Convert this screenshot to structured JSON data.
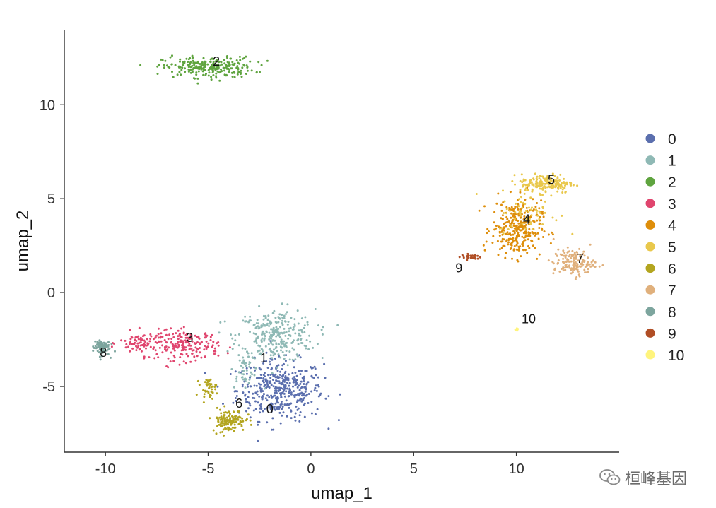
{
  "chart_data": {
    "type": "scatter",
    "title": "",
    "xlabel": "umap_1",
    "ylabel": "umap_2",
    "xlim": [
      -12,
      15
    ],
    "ylim": [
      -8.5,
      14
    ],
    "xticks": [
      -10,
      -5,
      0,
      5,
      10
    ],
    "yticks": [
      -5,
      0,
      5,
      10
    ],
    "grid": false,
    "legend_position": "right",
    "clusters": [
      {
        "name": "0",
        "color": "#5B6FAE",
        "label": [
          -2,
          -6.2
        ],
        "blobs": [
          [
            -1.5,
            -5.2,
            2.1,
            1.6,
            420
          ]
        ]
      },
      {
        "name": "1",
        "color": "#8FB9B5",
        "label": [
          -2.3,
          -3.5
        ],
        "blobs": [
          [
            -1.7,
            -2.3,
            1.9,
            1.4,
            300
          ],
          [
            -3.3,
            -4.2,
            0.6,
            0.9,
            40
          ]
        ]
      },
      {
        "name": "2",
        "color": "#5FA43F",
        "label": [
          -4.6,
          12.3
        ],
        "blobs": [
          [
            -5,
            12,
            2.2,
            0.55,
            260
          ]
        ]
      },
      {
        "name": "3",
        "color": "#E0456E",
        "label": [
          -5.9,
          -2.4
        ],
        "blobs": [
          [
            -6,
            -2.8,
            1.5,
            0.8,
            180
          ],
          [
            -8.1,
            -2.7,
            1.2,
            0.6,
            90
          ]
        ]
      },
      {
        "name": "4",
        "color": "#DE8E0B",
        "label": [
          10.5,
          3.9
        ],
        "blobs": [
          [
            10,
            3.4,
            1.2,
            1.5,
            300
          ]
        ]
      },
      {
        "name": "5",
        "color": "#E9C84C",
        "label": [
          11.7,
          6
        ],
        "blobs": [
          [
            11.5,
            5.8,
            1.3,
            0.5,
            180
          ],
          [
            10.6,
            4.2,
            1.5,
            1,
            60
          ]
        ]
      },
      {
        "name": "6",
        "color": "#B3A51F",
        "label": [
          -3.5,
          -5.9
        ],
        "blobs": [
          [
            -4,
            -6.8,
            0.8,
            0.6,
            130
          ],
          [
            -5,
            -5.1,
            0.4,
            0.5,
            40
          ]
        ]
      },
      {
        "name": "7",
        "color": "#E0B07C",
        "label": [
          13.1,
          1.8
        ],
        "blobs": [
          [
            12.8,
            1.6,
            1,
            0.7,
            150
          ]
        ]
      },
      {
        "name": "8",
        "color": "#7DA59E",
        "label": [
          -10.1,
          -3.2
        ],
        "blobs": [
          [
            -10.2,
            -2.9,
            0.4,
            0.45,
            90
          ]
        ]
      },
      {
        "name": "9",
        "color": "#B04E25",
        "label": [
          7.2,
          1.3
        ],
        "blobs": [
          [
            7.8,
            1.9,
            0.5,
            0.15,
            30
          ]
        ]
      },
      {
        "name": "10",
        "color": "#FFF47D",
        "label": [
          10.6,
          -1.4
        ],
        "blobs": [
          [
            10,
            -2,
            0.1,
            0.1,
            6
          ]
        ]
      }
    ]
  },
  "watermark": {
    "text": "桓峰基因",
    "icon": "wechat-icon"
  }
}
